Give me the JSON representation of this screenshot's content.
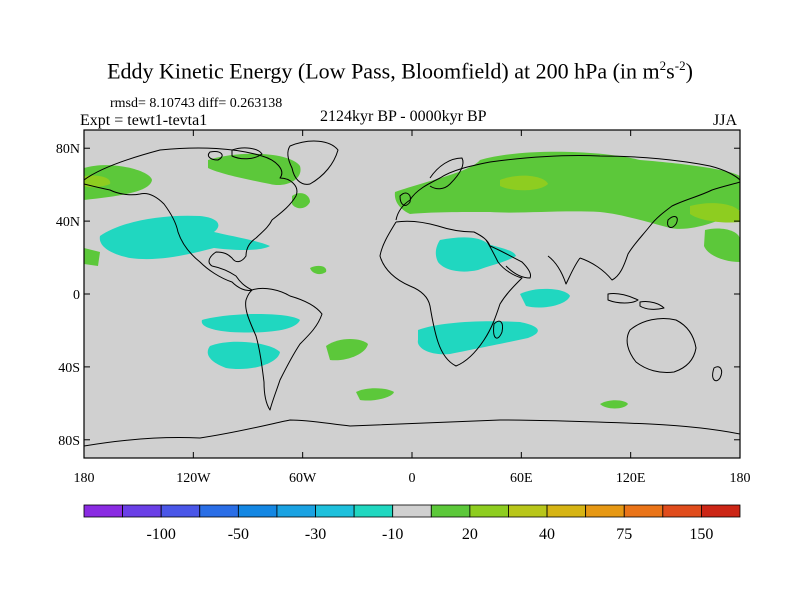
{
  "title_main": "Eddy Kinetic Energy (Low Pass, Bloomfield) at 200 hPa (in m",
  "title_sup1": "2",
  "title_mid": "s",
  "title_sup2": "-2",
  "title_end": ")",
  "stats": "rmsd= 8.10743 diff= 0.263138",
  "experiment": "Expt = tewt1-tevta1",
  "period": "2124kyr BP - 0000kyr BP",
  "season": "JJA",
  "map": {
    "lon_range": [
      -180,
      180
    ],
    "lat_range": [
      -90,
      90
    ],
    "lat_ticks": [
      {
        "value": 80,
        "label": "80N"
      },
      {
        "value": 40,
        "label": "40N"
      },
      {
        "value": 0,
        "label": "0"
      },
      {
        "value": -40,
        "label": "40S"
      },
      {
        "value": -80,
        "label": "80S"
      }
    ],
    "lon_ticks": [
      {
        "value": -180,
        "label": "180"
      },
      {
        "value": -120,
        "label": "120W"
      },
      {
        "value": -60,
        "label": "60W"
      },
      {
        "value": 0,
        "label": "0"
      },
      {
        "value": 60,
        "label": "60E"
      },
      {
        "value": 120,
        "label": "120E"
      },
      {
        "value": 180,
        "label": "180"
      }
    ],
    "background_color": "#d0d0d0",
    "colorbar": {
      "colors": [
        "#8a2be2",
        "#6a3fe6",
        "#4a56e8",
        "#2a6ee6",
        "#1487e3",
        "#1aa2e2",
        "#1ec0dc",
        "#20d7c0",
        "#d0d0d0",
        "#5cc83a",
        "#8ecd20",
        "#b8c61a",
        "#d6b414",
        "#e69814",
        "#ea7418",
        "#e04c1c",
        "#cc2616"
      ],
      "labels": [
        {
          "index": 2,
          "text": "-100"
        },
        {
          "index": 4,
          "text": "-50"
        },
        {
          "index": 6,
          "text": "-30"
        },
        {
          "index": 8,
          "text": "-10"
        },
        {
          "index": 10,
          "text": "20"
        },
        {
          "index": 12,
          "text": "40"
        },
        {
          "index": 14,
          "text": "75"
        },
        {
          "index": 16,
          "text": "150"
        }
      ]
    }
  }
}
